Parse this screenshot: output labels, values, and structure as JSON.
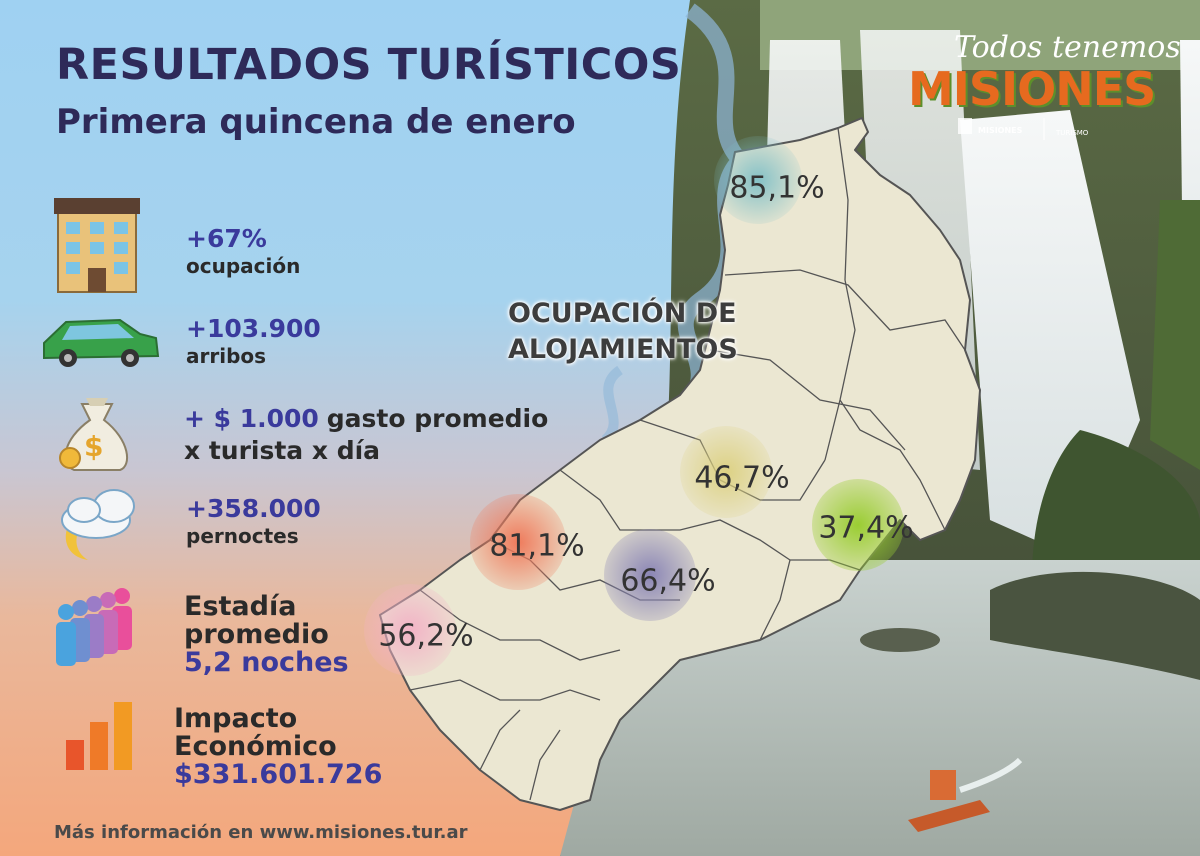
{
  "header": {
    "title": "RESULTADOS TURÍSTICOS",
    "subtitle": "Primera quincena de enero"
  },
  "brand": {
    "tagline": "Todos tenemos",
    "name": "MISIONES",
    "sub_left": "MISIONES",
    "sub_right": "TURISMO"
  },
  "stats": {
    "ocupacion": {
      "value": "+67%",
      "label": "ocupación",
      "icon": "hotel-building-icon"
    },
    "arribos": {
      "value": "+103.900",
      "label": "arribos",
      "icon": "car-icon"
    },
    "gasto": {
      "value": "+ $ 1.000",
      "label_1": "gasto promedio",
      "label_2": "x turista x día",
      "icon": "money-bag-icon"
    },
    "pernoctes": {
      "value": "+358.000",
      "label": "pernoctes",
      "icon": "moon-cloud-icon"
    },
    "estadia": {
      "label_1": "Estadía",
      "label_2": "promedio",
      "value": "5,2 noches",
      "icon": "people-group-icon"
    },
    "impacto": {
      "label_1": "Impacto",
      "label_2": "Económico",
      "value": "$331.601.726",
      "icon": "bar-chart-icon"
    }
  },
  "map": {
    "title_line_1": "OCUPACIÓN DE",
    "title_line_2": "ALOJAMIENTOS",
    "regions": [
      {
        "value": "85,1%",
        "color": "#7fbfc6"
      },
      {
        "value": "46,7%",
        "color": "#dcd07f"
      },
      {
        "value": "37,4%",
        "color": "#9acd32"
      },
      {
        "value": "81,1%",
        "color": "#ef7b5c"
      },
      {
        "value": "66,4%",
        "color": "#8a85b5"
      },
      {
        "value": "56,2%",
        "color": "#f2b3c6"
      }
    ]
  },
  "footer": {
    "text": "Más información en www.misiones.tur.ar"
  }
}
